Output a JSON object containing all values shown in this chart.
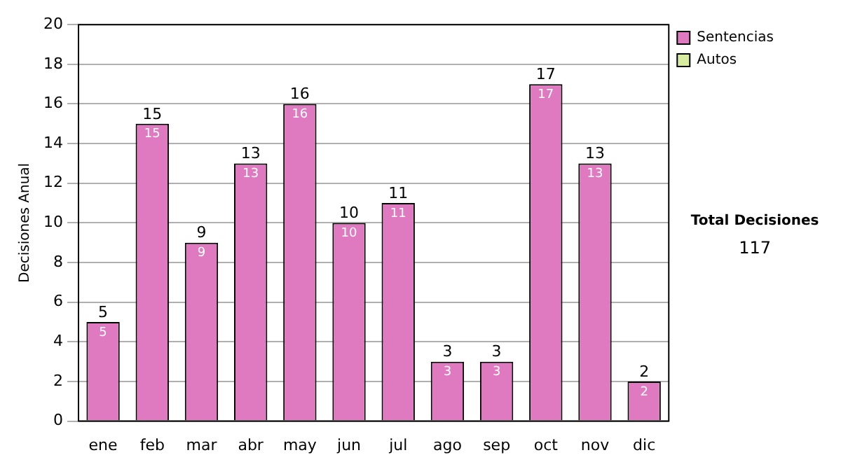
{
  "chart_data": {
    "type": "bar",
    "ylabel": "Decisiones Anual",
    "categories": [
      "ene",
      "feb",
      "mar",
      "abr",
      "may",
      "jun",
      "jul",
      "ago",
      "sep",
      "oct",
      "nov",
      "dic"
    ],
    "series": [
      {
        "name": "Sentencias",
        "color": "#e07ac0",
        "values": [
          5,
          15,
          9,
          13,
          16,
          10,
          11,
          3,
          3,
          17,
          13,
          2
        ],
        "value_labels": [
          "5",
          "15",
          "9",
          "13",
          "16",
          "10",
          "11",
          "3",
          "3",
          "17",
          "13",
          "2"
        ]
      },
      {
        "name": "Autos",
        "color": "#d8eca0",
        "values": [
          0,
          0,
          0,
          0,
          0,
          0,
          0,
          0,
          0,
          0,
          0,
          0
        ]
      }
    ],
    "stacked": true,
    "totals": [
      "5",
      "15",
      "9",
      "13",
      "16",
      "10",
      "11",
      "3",
      "3",
      "17",
      "13",
      "2"
    ],
    "ylim": [
      0,
      20
    ],
    "yticks": [
      0,
      2,
      4,
      6,
      8,
      10,
      12,
      14,
      16,
      18,
      20
    ],
    "grid": "y",
    "legend": "right",
    "annotations": [
      "Total Decisiones",
      "117"
    ]
  }
}
